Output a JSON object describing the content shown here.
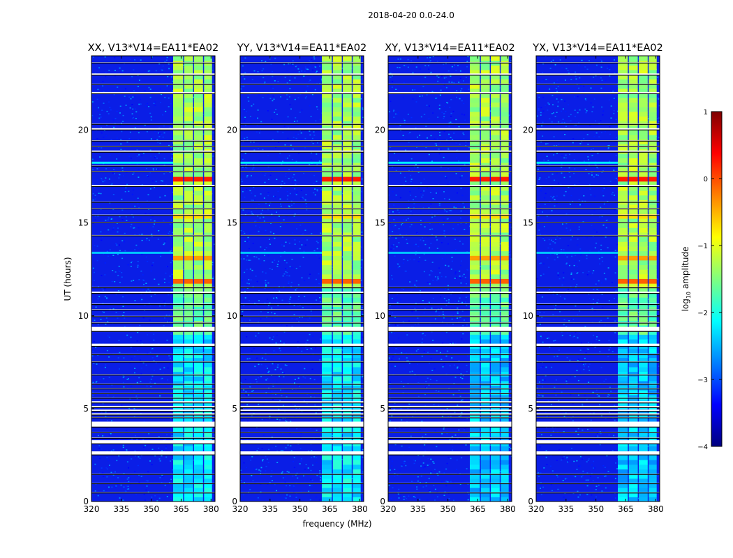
{
  "chart_data": {
    "type": "heatmap",
    "title": "2018-04-20 0.0-24.0",
    "xlabel": "frequency (MHz)",
    "ylabel": "UT (hours)",
    "xlim": [
      320,
      382
    ],
    "ylim": [
      0,
      24
    ],
    "xticks": [
      320,
      335,
      350,
      365,
      380
    ],
    "yticks": [
      0,
      5,
      10,
      15,
      20
    ],
    "panels": [
      {
        "name": "XX",
        "title": "XX, V13*V14=EA11*EA02"
      },
      {
        "name": "YY",
        "title": "YY, V13*V14=EA11*EA02"
      },
      {
        "name": "XY",
        "title": "XY, V13*V14=EA11*EA02"
      },
      {
        "name": "YX",
        "title": "YX, V13*V14=EA11*EA02"
      }
    ],
    "colorbar": {
      "label": "log10 amplitude",
      "label_base": "log",
      "label_sub": "10",
      "label_rest": " amplitude",
      "min": -4,
      "max": 1,
      "ticks": [
        1,
        0,
        -1,
        -2,
        -3,
        -4
      ],
      "tick_labels": [
        "1",
        "0",
        "−1",
        "−2",
        "−3",
        "−4"
      ],
      "colormap": "jet"
    },
    "signal_band_mhz": [
      361,
      382
    ],
    "signal_subbands_mhz": [
      [
        361,
        366
      ],
      [
        366.5,
        371
      ],
      [
        371.5,
        376
      ],
      [
        376.5,
        380.5
      ]
    ],
    "flagged_hours": [
      [
        0.45,
        0.5
      ],
      [
        0.95,
        1.0
      ],
      [
        1.45,
        1.5
      ],
      [
        2.5,
        2.7
      ],
      [
        3.1,
        3.3
      ],
      [
        3.4,
        3.45
      ],
      [
        3.7,
        3.75
      ],
      [
        4.0,
        4.3
      ],
      [
        4.5,
        4.55
      ],
      [
        4.65,
        4.75
      ],
      [
        4.85,
        4.95
      ],
      [
        5.05,
        5.15
      ],
      [
        5.3,
        5.4
      ],
      [
        5.55,
        5.6
      ],
      [
        5.8,
        5.85
      ],
      [
        6.05,
        6.1
      ],
      [
        6.3,
        6.35
      ],
      [
        6.8,
        6.85
      ],
      [
        7.5,
        7.55
      ],
      [
        7.9,
        7.95
      ],
      [
        8.35,
        8.5
      ],
      [
        9.15,
        9.4
      ],
      [
        9.6,
        9.65
      ],
      [
        9.95,
        10.0
      ],
      [
        10.3,
        10.35
      ],
      [
        10.6,
        10.65
      ],
      [
        11.2,
        11.3
      ],
      [
        11.5,
        11.55
      ],
      [
        14.3,
        14.35
      ],
      [
        15.0,
        15.05
      ],
      [
        15.4,
        15.45
      ],
      [
        15.75,
        15.8
      ],
      [
        16.1,
        16.15
      ],
      [
        16.95,
        17.05
      ],
      [
        17.75,
        17.8
      ],
      [
        18.05,
        18.1
      ],
      [
        18.8,
        18.9
      ],
      [
        19.1,
        19.15
      ],
      [
        19.4,
        19.45
      ],
      [
        20.0,
        20.1
      ],
      [
        20.3,
        20.35
      ],
      [
        21.95,
        22.05
      ],
      [
        22.45,
        22.5
      ],
      [
        22.95,
        23.05
      ],
      [
        23.6,
        23.65
      ]
    ]
  }
}
